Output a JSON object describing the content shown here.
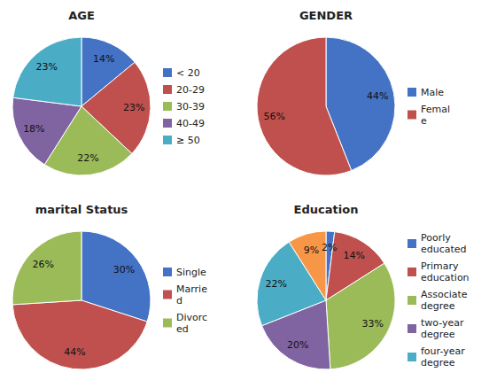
{
  "chart_data": [
    {
      "type": "pie",
      "title": "AGE",
      "categories": [
        "< 20",
        "20-29",
        "30-39",
        "40-49",
        "≥ 50"
      ],
      "values": [
        14,
        23,
        22,
        18,
        23
      ],
      "value_labels": [
        "14%",
        "23%",
        "22%",
        "18%",
        "23%"
      ],
      "colors": [
        "#4472c4",
        "#c0504d",
        "#9bbb59",
        "#8064a2",
        "#4bacc6"
      ],
      "data_labels": true,
      "legend": "right"
    },
    {
      "type": "pie",
      "title": "GENDER",
      "categories": [
        "Male",
        "Femal\ne"
      ],
      "values": [
        44,
        56
      ],
      "value_labels": [
        "44%",
        "56%"
      ],
      "colors": [
        "#4472c4",
        "#c0504d"
      ],
      "data_labels": true,
      "legend": "right"
    },
    {
      "type": "pie",
      "title": "marital Status",
      "categories": [
        "Single",
        "Marrie\nd",
        "Divorc\ned"
      ],
      "values": [
        30,
        44,
        26
      ],
      "value_labels": [
        "30%",
        "44%",
        "26%"
      ],
      "colors": [
        "#4472c4",
        "#c0504d",
        "#9bbb59"
      ],
      "data_labels": true,
      "legend": "right"
    },
    {
      "type": "pie",
      "title": "Education",
      "categories": [
        "Poorly\neducated",
        "Primary\neducation",
        "Associate\ndegree",
        "two-year\ndegree",
        "four-year\ndegree",
        null
      ],
      "values": [
        2,
        14,
        33,
        20,
        22,
        9
      ],
      "value_labels": [
        "2%",
        "14%",
        "33%",
        "20%",
        "22%",
        "9%"
      ],
      "colors": [
        "#4472c4",
        "#c0504d",
        "#9bbb59",
        "#8064a2",
        "#4bacc6",
        "#f79646"
      ],
      "data_labels": true,
      "legend": "right"
    }
  ]
}
